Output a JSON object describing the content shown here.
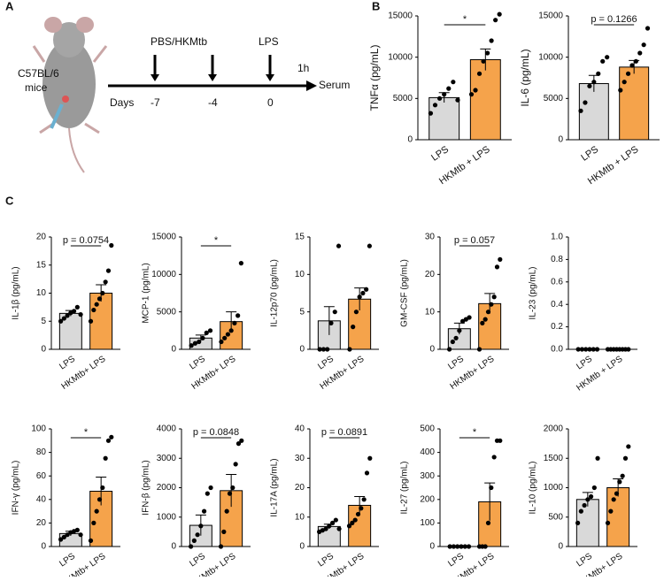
{
  "panel_labels": [
    "A",
    "B",
    "C"
  ],
  "diagram": {
    "strain": "C57BL/6",
    "strain_note": "mice",
    "treatment1": "PBS/HKMtb",
    "treatment2": "LPS",
    "days_label": "Days",
    "day1": "-7",
    "day2": "-4",
    "day3": "0",
    "interval": "1h",
    "endpoint": "Serum"
  },
  "chart_data": [
    {
      "type": "bar",
      "y_label": "TNFα (pg/mL)",
      "categories": [
        "LPS",
        "HKMtb + LPS"
      ],
      "colors": [
        "#d9d9d9",
        "#f5a34b"
      ],
      "values": [
        5100,
        9700
      ],
      "errors": [
        600,
        1300
      ],
      "points": [
        [
          3200,
          4200,
          5000,
          5500,
          6200,
          7000,
          4800
        ],
        [
          5500,
          6000,
          8000,
          9500,
          10500,
          12000,
          14500,
          15200
        ]
      ],
      "ylim": [
        0,
        15000
      ],
      "yticks": [
        0,
        5000,
        10000,
        15000
      ],
      "annotation": "*"
    },
    {
      "type": "bar",
      "y_label": "IL-6 (pg/mL)",
      "categories": [
        "LPS",
        "HKMtb + LPS"
      ],
      "colors": [
        "#d9d9d9",
        "#f5a34b"
      ],
      "values": [
        6800,
        8800
      ],
      "errors": [
        1000,
        800
      ],
      "points": [
        [
          3500,
          4500,
          6500,
          7000,
          8000,
          9500,
          10000
        ],
        [
          6000,
          7000,
          8000,
          9000,
          9500,
          10500,
          11500,
          13500
        ]
      ],
      "ylim": [
        0,
        15000
      ],
      "yticks": [
        0,
        5000,
        10000,
        15000
      ],
      "annotation": "p = 0.1266"
    },
    {
      "type": "bar",
      "y_label": "IL-1β (pg/mL)",
      "categories": [
        "LPS",
        "HKMtb+ LPS"
      ],
      "colors": [
        "#d9d9d9",
        "#f5a34b"
      ],
      "values": [
        6.4,
        10
      ],
      "errors": [
        0.5,
        1.5
      ],
      "points": [
        [
          5,
          5.5,
          6,
          6.5,
          6.8,
          7.5,
          6.2
        ],
        [
          5,
          7,
          8,
          9,
          10,
          12,
          14,
          18.5
        ]
      ],
      "ylim": [
        0,
        20
      ],
      "yticks": [
        0,
        5,
        10,
        15,
        20
      ],
      "annotation": "p = 0.0754"
    },
    {
      "type": "bar",
      "y_label": "MCP-1 (pg/mL)",
      "categories": [
        "LPS",
        "HKMtb+ LPS"
      ],
      "colors": [
        "#d9d9d9",
        "#f5a34b"
      ],
      "values": [
        1500,
        3700
      ],
      "errors": [
        400,
        1300
      ],
      "points": [
        [
          500,
          800,
          1000,
          1500,
          2200,
          2500
        ],
        [
          1000,
          1500,
          2000,
          2500,
          3500,
          4500,
          11500
        ]
      ],
      "ylim": [
        0,
        15000
      ],
      "yticks": [
        0,
        5000,
        10000,
        15000
      ],
      "annotation": "*"
    },
    {
      "type": "bar",
      "y_label": "IL-12p70 (pg/mL)",
      "categories": [
        "LPS",
        "HKMtb+ LPS"
      ],
      "colors": [
        "#d9d9d9",
        "#f5a34b"
      ],
      "values": [
        3.8,
        6.7
      ],
      "errors": [
        1.9,
        1.5
      ],
      "points": [
        [
          0,
          0,
          0,
          3.5,
          5,
          13.8
        ],
        [
          0,
          3,
          5,
          7,
          7.5,
          8,
          13.8
        ]
      ],
      "ylim": [
        0,
        15
      ],
      "yticks": [
        0,
        5,
        10,
        15
      ]
    },
    {
      "type": "bar",
      "y_label": "GM-CSF (pg/mL)",
      "categories": [
        "LPS",
        "HKMtb+ LPS"
      ],
      "colors": [
        "#d9d9d9",
        "#f5a34b"
      ],
      "values": [
        5.5,
        12.2
      ],
      "errors": [
        1.5,
        2.7
      ],
      "points": [
        [
          0,
          2,
          3,
          5,
          7.5,
          8,
          8.5
        ],
        [
          0,
          7,
          8,
          10,
          12,
          14,
          22,
          24
        ]
      ],
      "ylim": [
        0,
        30
      ],
      "yticks": [
        0,
        10,
        20,
        30
      ],
      "annotation": "p = 0.057"
    },
    {
      "type": "bar",
      "y_label": "IL-23 (pg/mL)",
      "categories": [
        "LPS",
        "HKMtb + LPS"
      ],
      "colors": [
        "#d9d9d9",
        "#f5a34b"
      ],
      "values": [
        0,
        0
      ],
      "errors": [
        0,
        0
      ],
      "points": [
        [
          0,
          0,
          0,
          0,
          0,
          0
        ],
        [
          0,
          0,
          0,
          0,
          0,
          0,
          0,
          0
        ]
      ],
      "ylim": [
        0,
        1
      ],
      "yticks": [
        {
          "value": 0,
          "label": "0.0"
        },
        0.2,
        0.4,
        0.6,
        0.8,
        {
          "value": 1,
          "label": "1.0"
        }
      ]
    },
    {
      "type": "bar",
      "y_label": "IFN-γ (pg/mL)",
      "categories": [
        "LPS",
        "HKMtb+ LPS"
      ],
      "colors": [
        "#d9d9d9",
        "#f5a34b"
      ],
      "values": [
        11,
        47
      ],
      "errors": [
        2,
        12
      ],
      "points": [
        [
          6,
          8,
          10,
          12,
          13,
          14,
          10
        ],
        [
          5,
          20,
          30,
          40,
          50,
          75,
          90,
          93
        ]
      ],
      "ylim": [
        0,
        100
      ],
      "yticks": [
        0,
        20,
        40,
        60,
        80,
        100
      ],
      "annotation": "*"
    },
    {
      "type": "bar",
      "y_label": "IFN-β (pg/mL)",
      "categories": [
        "LPS",
        "HKMtb+ LPS"
      ],
      "colors": [
        "#d9d9d9",
        "#f5a34b"
      ],
      "values": [
        720,
        1900
      ],
      "errors": [
        350,
        550
      ],
      "points": [
        [
          0,
          200,
          400,
          700,
          1200,
          1800,
          2000
        ],
        [
          0,
          500,
          1200,
          1800,
          2000,
          2800,
          3500,
          3600
        ]
      ],
      "ylim": [
        0,
        4000
      ],
      "yticks": [
        0,
        1000,
        2000,
        3000,
        4000
      ],
      "annotation": "p = 0.0848"
    },
    {
      "type": "bar",
      "y_label": "IL-17A (pg/mL)",
      "categories": [
        "LPS",
        "HKMtb+ LPS"
      ],
      "colors": [
        "#d9d9d9",
        "#f5a34b"
      ],
      "values": [
        6.8,
        14
      ],
      "errors": [
        0.8,
        3
      ],
      "points": [
        [
          5,
          5.5,
          6,
          7,
          8,
          9,
          6
        ],
        [
          7,
          8,
          9,
          11,
          13,
          16,
          25,
          30
        ]
      ],
      "ylim": [
        0,
        40
      ],
      "yticks": [
        0,
        10,
        20,
        30,
        40
      ],
      "annotation": "p = 0.0891"
    },
    {
      "type": "bar",
      "y_label": "IL-27 (pg/mL)",
      "categories": [
        "LPS",
        "HKMtb+ LPS"
      ],
      "colors": [
        "#d9d9d9",
        "#f5a34b"
      ],
      "values": [
        0,
        190
      ],
      "errors": [
        0,
        80
      ],
      "points": [
        [
          0,
          0,
          0,
          0,
          0,
          0
        ],
        [
          0,
          0,
          0,
          100,
          250,
          380,
          450,
          450
        ]
      ],
      "ylim": [
        0,
        500
      ],
      "yticks": [
        0,
        100,
        200,
        300,
        400,
        500
      ],
      "annotation": "*"
    },
    {
      "type": "bar",
      "y_label": "IL-10 (pg/mL)",
      "categories": [
        "LPS",
        "HKMtb+ LPS"
      ],
      "colors": [
        "#d9d9d9",
        "#f5a34b"
      ],
      "values": [
        800,
        1000
      ],
      "errors": [
        120,
        150
      ],
      "points": [
        [
          400,
          600,
          700,
          800,
          850,
          1000,
          1500
        ],
        [
          400,
          600,
          800,
          900,
          1100,
          1200,
          1500,
          1700
        ]
      ],
      "ylim": [
        0,
        2000
      ],
      "yticks": [
        0,
        500,
        1000,
        1500,
        2000
      ]
    }
  ]
}
